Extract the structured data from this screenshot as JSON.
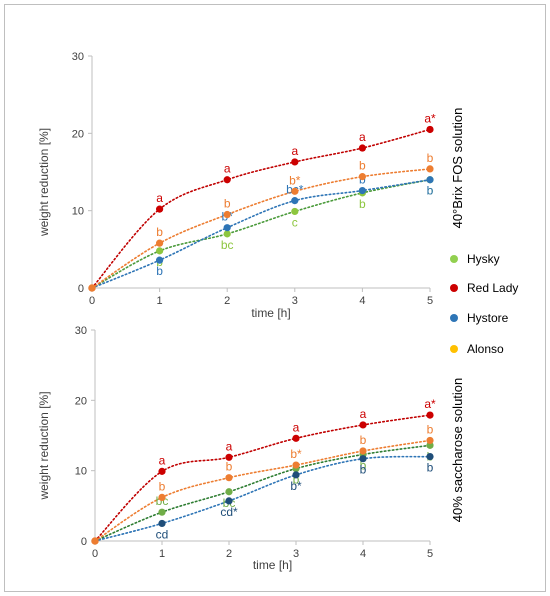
{
  "chart_data": [
    {
      "type": "scatter",
      "panel_title": "40°Brix FOS solution",
      "xlabel": "time [h]",
      "ylabel": "weight reduction [%]",
      "xlim": [
        0,
        5
      ],
      "ylim": [
        0,
        30
      ],
      "x_ticks": [
        0,
        1,
        2,
        3,
        4,
        5
      ],
      "y_ticks": [
        0,
        10,
        20,
        30
      ],
      "grid": false,
      "trendlines": "dotted",
      "x": [
        0,
        1,
        2,
        3,
        4,
        5
      ],
      "series": [
        {
          "name": "Hysky",
          "color": "#8dc63f",
          "trend_color": "#4a9a3a",
          "values": [
            0,
            4.8,
            7.0,
            9.9,
            12.3,
            14.0
          ],
          "labels": [
            "",
            "b",
            "bc",
            "c",
            "b",
            "b"
          ]
        },
        {
          "name": "Red Lady",
          "color": "#cc0000",
          "trend_color": "#c00000",
          "values": [
            0,
            10.2,
            14.0,
            16.3,
            18.1,
            20.5
          ],
          "labels": [
            "",
            "a",
            "a",
            "a",
            "a",
            "a*"
          ]
        },
        {
          "name": "Hystore",
          "color": "#2e75b6",
          "trend_color": "#2e75b6",
          "values": [
            0,
            3.6,
            7.8,
            11.3,
            12.6,
            14.0
          ],
          "labels": [
            "",
            "b",
            "b*",
            "bc*",
            "b",
            "b"
          ]
        },
        {
          "name": "Alonso",
          "color": "#ed7d31",
          "trend_color": "#ed7d31",
          "values": [
            0,
            5.8,
            9.5,
            12.5,
            14.4,
            15.4
          ],
          "labels": [
            "",
            "b",
            "b",
            "b*",
            "b",
            "b"
          ]
        }
      ]
    },
    {
      "type": "scatter",
      "panel_title": "40% saccharose solution",
      "xlabel": "time [h]",
      "ylabel": "weight reduction [%]",
      "xlim": [
        0,
        5
      ],
      "ylim": [
        0,
        30
      ],
      "x_ticks": [
        0,
        1,
        2,
        3,
        4,
        5
      ],
      "y_ticks": [
        0,
        10,
        20,
        30
      ],
      "grid": false,
      "trendlines": "dotted",
      "x": [
        0,
        1,
        2,
        3,
        4,
        5
      ],
      "series": [
        {
          "name": "Hysky",
          "color": "#70ad47",
          "trend_color": "#2e7d32",
          "values": [
            0,
            4.1,
            7.0,
            10.3,
            12.3,
            13.6
          ],
          "labels": [
            "",
            "bc",
            "bc",
            "b",
            "b",
            "b"
          ]
        },
        {
          "name": "Red Lady",
          "color": "#cc0000",
          "trend_color": "#c00000",
          "values": [
            0,
            9.9,
            11.9,
            14.6,
            16.5,
            17.9
          ],
          "labels": [
            "",
            "a",
            "a",
            "a",
            "a",
            "a*"
          ]
        },
        {
          "name": "Hystore",
          "color": "#1f4e79",
          "trend_color": "#2e75b6",
          "values": [
            0,
            2.5,
            5.7,
            9.4,
            11.7,
            12.0
          ],
          "labels": [
            "",
            "cd",
            "cd*",
            "b*",
            "b",
            "b"
          ]
        },
        {
          "name": "Alonso",
          "color": "#ed7d31",
          "trend_color": "#ed7d31",
          "values": [
            0,
            6.2,
            9.0,
            10.8,
            12.8,
            14.3
          ],
          "labels": [
            "",
            "b",
            "b",
            "b*",
            "b",
            "b"
          ]
        }
      ]
    }
  ],
  "legend": {
    "placement": "right",
    "items": [
      {
        "name": "Hysky",
        "color": "#92d050"
      },
      {
        "name": "Red Lady",
        "color": "#cc0000"
      },
      {
        "name": "Hystore",
        "color": "#2e75b6"
      },
      {
        "name": "Alonso",
        "color": "#ffc000"
      }
    ]
  }
}
